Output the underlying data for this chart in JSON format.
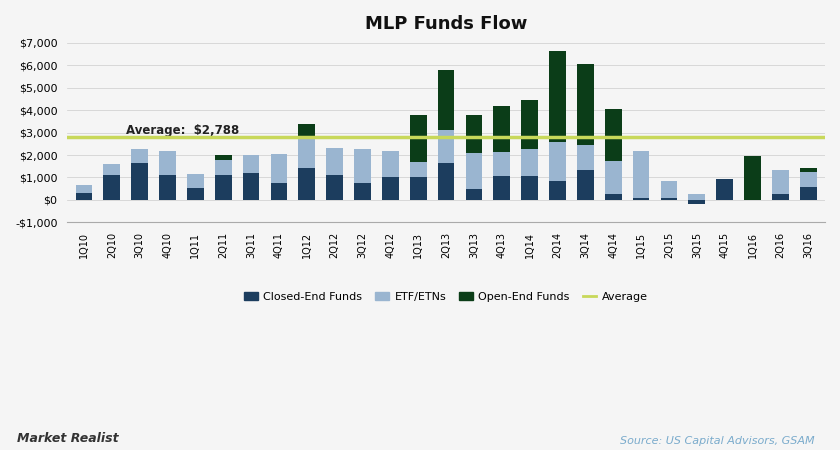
{
  "title": "MLP Funds Flow",
  "categories": [
    "1Q10",
    "2Q10",
    "3Q10",
    "4Q10",
    "1Q11",
    "2Q11",
    "3Q11",
    "4Q11",
    "1Q12",
    "2Q12",
    "3Q12",
    "4Q12",
    "1Q13",
    "2Q13",
    "3Q13",
    "4Q13",
    "1Q14",
    "2Q14",
    "3Q14",
    "4Q14",
    "1Q15",
    "2Q15",
    "3Q15",
    "4Q15",
    "1Q16",
    "2Q16",
    "3Q16"
  ],
  "closed_end": [
    300,
    1100,
    1650,
    1100,
    550,
    1100,
    1200,
    750,
    1400,
    1100,
    750,
    1000,
    1000,
    1650,
    500,
    1050,
    1050,
    850,
    1350,
    250,
    100,
    100,
    -200,
    950,
    0,
    250,
    580
  ],
  "etf_etns": [
    350,
    500,
    600,
    1100,
    600,
    700,
    800,
    1300,
    1400,
    1200,
    1500,
    1200,
    700,
    1450,
    1600,
    1100,
    1200,
    1750,
    1100,
    1500,
    2100,
    750,
    250,
    0,
    0,
    1100,
    650
  ],
  "open_end": [
    0,
    0,
    0,
    0,
    0,
    200,
    0,
    0,
    600,
    0,
    0,
    0,
    2100,
    2700,
    1700,
    2050,
    2200,
    4050,
    3600,
    2300,
    0,
    0,
    0,
    0,
    1950,
    0,
    200
  ],
  "average": 2788,
  "average_label": "Average:  $2,788",
  "ylim": [
    -1000,
    7000
  ],
  "yticks": [
    -1000,
    0,
    1000,
    2000,
    3000,
    4000,
    5000,
    6000,
    7000
  ],
  "color_closed": "#1c3d5e",
  "color_etf": "#9ab5d0",
  "color_open": "#0b3d18",
  "color_average": "#c8d85a",
  "legend_labels": [
    "Closed-End Funds",
    "ETF/ETNs",
    "Open-End Funds",
    "Average"
  ],
  "source_text": "Source: US Capital Advisors, GSAM",
  "watermark_text": "Market Realist",
  "background_color": "#f5f5f5"
}
